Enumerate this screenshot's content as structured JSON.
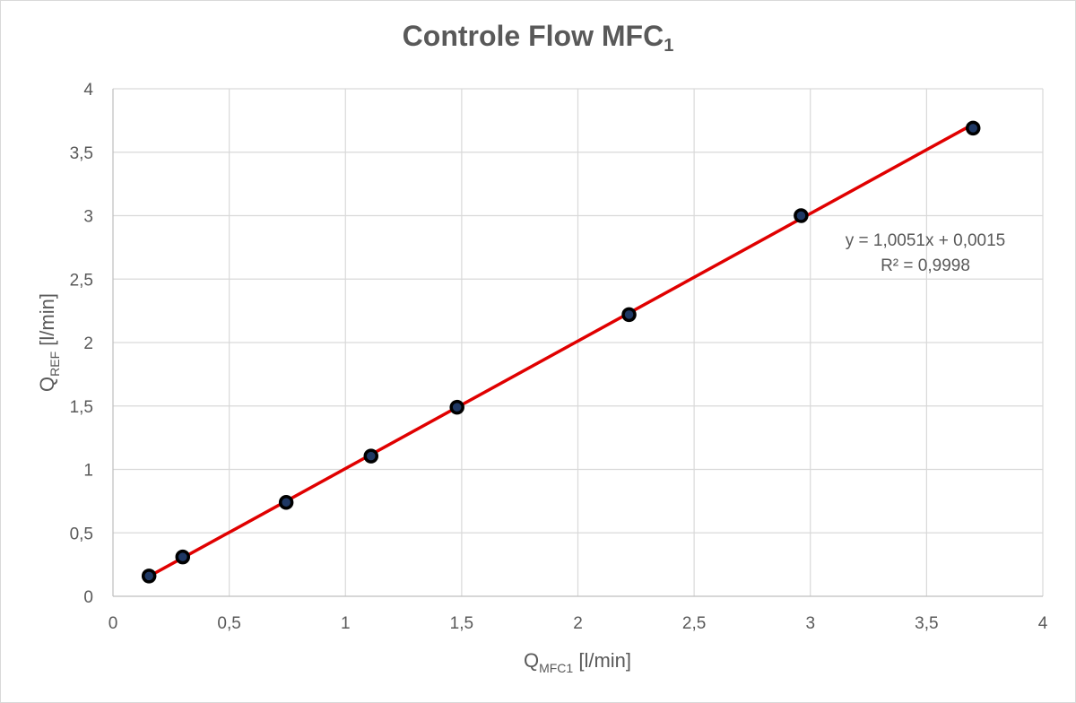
{
  "chart_data": {
    "type": "scatter",
    "title": "Controle Flow MFC",
    "title_subscript": "1",
    "xlabel": "Q",
    "xlabel_subscript": "MFC1",
    "xlabel_unit": " [l/min]",
    "ylabel": "Q",
    "ylabel_subscript": "REF",
    "ylabel_unit": " [l/min]",
    "xlim": [
      0,
      4
    ],
    "ylim": [
      0,
      4
    ],
    "x_ticks": [
      "0",
      "0,5",
      "1",
      "1,5",
      "2",
      "2,5",
      "3",
      "3,5",
      "4"
    ],
    "y_ticks": [
      "0",
      "0,5",
      "1",
      "1,5",
      "2",
      "2,5",
      "3",
      "3,5",
      "4"
    ],
    "tick_step": 0.5,
    "grid": true,
    "series": [
      {
        "x": [
          0.155,
          0.3,
          0.745,
          1.11,
          1.48,
          2.22,
          2.96,
          3.7
        ],
        "y": [
          0.16,
          0.31,
          0.74,
          1.105,
          1.49,
          2.22,
          3.0,
          3.69
        ],
        "marker_color": "#1f3864",
        "marker_edge_color": "#000000"
      }
    ],
    "trendline": {
      "slope": 1.0051,
      "intercept": 0.0015,
      "x_range": [
        0.155,
        3.7
      ],
      "color": "#e00000",
      "equation": "y = 1,0051x + 0,0015",
      "r_squared": "R² = 0,9998"
    },
    "annotation_position": "right, near top"
  }
}
